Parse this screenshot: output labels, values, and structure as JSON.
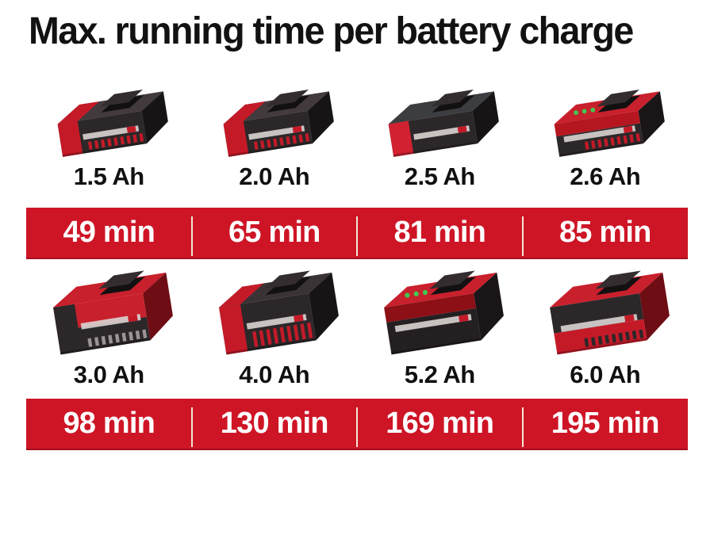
{
  "title": "Max. running time per battery charge",
  "colors": {
    "background": "#ffffff",
    "banner_red": "#ce1526",
    "divider_cream": "#f3e8d2",
    "title_text": "#121212",
    "capacity_text": "#111111",
    "runtime_text": "#ffffff",
    "battery_red": "#c41a28",
    "battery_dark": "#2c2729",
    "led_green": "#43c653"
  },
  "chart_data": {
    "type": "table",
    "title": "Max. running time per battery charge",
    "categories": [
      "1.5 Ah",
      "2.0 Ah",
      "2.5 Ah",
      "2.6 Ah",
      "3.0 Ah",
      "4.0 Ah",
      "5.2 Ah",
      "6.0 Ah"
    ],
    "values": [
      49,
      65,
      81,
      85,
      98,
      130,
      169,
      195
    ],
    "unit": "min",
    "layout": "two rows of four battery icons, each with capacity label above a red runtime banner"
  },
  "rows": [
    {
      "batteries": [
        {
          "icon": "battery-1-5ah-icon",
          "capacity": "1.5 Ah",
          "runtime": "49 min",
          "variant": "small-dark-redcell"
        },
        {
          "icon": "battery-2-0ah-icon",
          "capacity": "2.0 Ah",
          "runtime": "65 min",
          "variant": "small-dark-redcell"
        },
        {
          "icon": "battery-2-5ah-icon",
          "capacity": "2.5 Ah",
          "runtime": "81 min",
          "variant": "small-dark-redclip"
        },
        {
          "icon": "battery-2-6ah-icon",
          "capacity": "2.6 Ah",
          "runtime": "85 min",
          "variant": "small-redtop-led"
        }
      ]
    },
    {
      "batteries": [
        {
          "icon": "battery-3-0ah-icon",
          "capacity": "3.0 Ah",
          "runtime": "98 min",
          "variant": "large-redtop"
        },
        {
          "icon": "battery-4-0ah-icon",
          "capacity": "4.0 Ah",
          "runtime": "130 min",
          "variant": "large-dark-redvents"
        },
        {
          "icon": "battery-5-2ah-icon",
          "capacity": "5.2 Ah",
          "runtime": "169 min",
          "variant": "large-redtop-led"
        },
        {
          "icon": "battery-6-0ah-icon",
          "capacity": "6.0 Ah",
          "runtime": "195 min",
          "variant": "large-redtop-redbottom"
        }
      ]
    }
  ]
}
